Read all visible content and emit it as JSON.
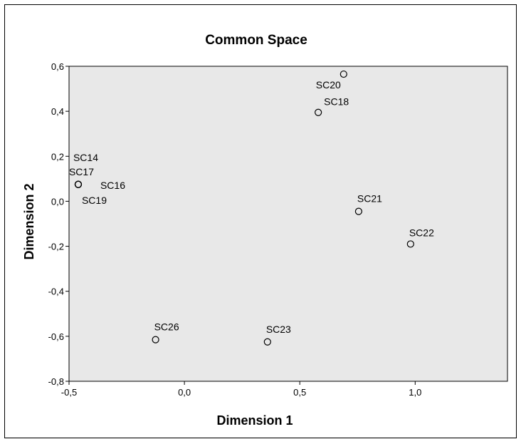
{
  "chart_data": {
    "type": "scatter",
    "title": "Common Space",
    "xlabel": "Dimension 1",
    "ylabel": "Dimension 2",
    "xlim": [
      -0.5,
      1.4
    ],
    "ylim": [
      -0.8,
      0.6
    ],
    "x_ticks": [
      -0.5,
      0.0,
      0.5,
      1.0
    ],
    "x_tick_labels": [
      "-0,5",
      "0,0",
      "0,5",
      "1,0"
    ],
    "y_ticks": [
      0.6,
      0.4,
      0.2,
      0.0,
      -0.2,
      -0.4,
      -0.6,
      -0.8
    ],
    "y_tick_labels": [
      "0,6",
      "0,4",
      "0,2",
      "0,0",
      "-0,2",
      "-0,4",
      "-0,6",
      "-0,8"
    ],
    "grid": false,
    "plot_background": "#e8e8e8",
    "points": [
      {
        "label": "SC14",
        "x": -0.46,
        "y": 0.075
      },
      {
        "label": "SC17",
        "x": -0.46,
        "y": 0.075
      },
      {
        "label": "SC16",
        "x": -0.46,
        "y": 0.075
      },
      {
        "label": "SC19",
        "x": -0.46,
        "y": 0.075
      },
      {
        "label": "SC20",
        "x": 0.69,
        "y": 0.565
      },
      {
        "label": "SC18",
        "x": 0.58,
        "y": 0.395
      },
      {
        "label": "SC21",
        "x": 0.755,
        "y": -0.045
      },
      {
        "label": "SC22",
        "x": 0.98,
        "y": -0.19
      },
      {
        "label": "SC26",
        "x": -0.125,
        "y": -0.615
      },
      {
        "label": "SC23",
        "x": 0.36,
        "y": -0.625
      }
    ]
  }
}
